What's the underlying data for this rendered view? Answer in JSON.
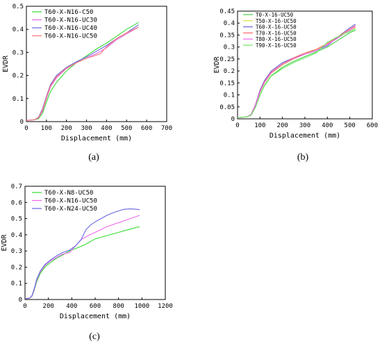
{
  "chart_data": [
    {
      "type": "line",
      "caption": "(a)",
      "xlabel": "Displacement (mm)",
      "ylabel": "EVDR",
      "xlim": [
        0,
        700
      ],
      "ylim": [
        0,
        0.5
      ],
      "xticks": [
        0,
        100,
        200,
        300,
        400,
        500,
        600,
        700
      ],
      "yticks": [
        0,
        0.1,
        0.2,
        0.3,
        0.4,
        0.5
      ],
      "legend": "top-left",
      "series": [
        {
          "name": "T60-X-N16-C50",
          "color": "#33dd33",
          "x": [
            0,
            40,
            60,
            80,
            100,
            120,
            150,
            200,
            250,
            300,
            350,
            400,
            450,
            500,
            560
          ],
          "y": [
            0.005,
            0.008,
            0.012,
            0.035,
            0.085,
            0.13,
            0.17,
            0.22,
            0.255,
            0.285,
            0.315,
            0.34,
            0.37,
            0.4,
            0.43
          ]
        },
        {
          "name": "T60-X-N16-UC30",
          "color": "#e066e0",
          "x": [
            0,
            40,
            60,
            80,
            100,
            120,
            150,
            200,
            250,
            300,
            350,
            400,
            450,
            500,
            560
          ],
          "y": [
            0.005,
            0.008,
            0.015,
            0.045,
            0.1,
            0.15,
            0.19,
            0.23,
            0.255,
            0.275,
            0.295,
            0.32,
            0.355,
            0.38,
            0.41
          ]
        },
        {
          "name": "T60-X-N16-UC40",
          "color": "#6666dd",
          "x": [
            0,
            40,
            60,
            80,
            100,
            120,
            150,
            200,
            250,
            300,
            350,
            400,
            450,
            500,
            560
          ],
          "y": [
            0.005,
            0.008,
            0.018,
            0.055,
            0.11,
            0.16,
            0.2,
            0.235,
            0.26,
            0.28,
            0.305,
            0.33,
            0.36,
            0.385,
            0.42
          ]
        },
        {
          "name": "T60-X-N16-UC50",
          "color": "#ff7777",
          "x": [
            0,
            40,
            60,
            80,
            100,
            120,
            150,
            200,
            250,
            300,
            340,
            370,
            400,
            450,
            500,
            560
          ],
          "y": [
            0.005,
            0.008,
            0.016,
            0.05,
            0.105,
            0.155,
            0.195,
            0.232,
            0.255,
            0.275,
            0.285,
            0.295,
            0.325,
            0.36,
            0.385,
            0.41
          ]
        }
      ]
    },
    {
      "type": "line",
      "caption": "(b)",
      "xlabel": "Displacement (mm)",
      "ylabel": "EVDR",
      "xlim": [
        0,
        600
      ],
      "ylim": [
        0,
        0.45
      ],
      "xticks": [
        0,
        100,
        200,
        300,
        400,
        500,
        600
      ],
      "yticks": [
        0,
        0.05,
        0.1,
        0.15,
        0.2,
        0.25,
        0.3,
        0.35,
        0.4,
        0.45
      ],
      "legend": "top-left",
      "series": [
        {
          "name": "T0-X-16-UC50",
          "color": "#44cc44",
          "x": [
            0,
            40,
            60,
            80,
            100,
            120,
            150,
            200,
            250,
            300,
            350,
            400,
            450,
            500,
            525
          ],
          "y": [
            0.005,
            0.008,
            0.015,
            0.05,
            0.1,
            0.14,
            0.18,
            0.215,
            0.24,
            0.26,
            0.28,
            0.3,
            0.33,
            0.36,
            0.37
          ]
        },
        {
          "name": "T50-X-16-UC50",
          "color": "#dddd44",
          "x": [
            0,
            40,
            60,
            80,
            100,
            120,
            150,
            200,
            250,
            300,
            350,
            400,
            450,
            500,
            525
          ],
          "y": [
            0.005,
            0.008,
            0.016,
            0.055,
            0.11,
            0.15,
            0.19,
            0.225,
            0.25,
            0.27,
            0.29,
            0.31,
            0.34,
            0.37,
            0.38
          ]
        },
        {
          "name": "T60-X-16-UC50",
          "color": "#6666dd",
          "x": [
            0,
            40,
            60,
            80,
            100,
            120,
            150,
            200,
            250,
            300,
            350,
            400,
            450,
            500,
            525
          ],
          "y": [
            0.005,
            0.008,
            0.018,
            0.06,
            0.12,
            0.16,
            0.2,
            0.235,
            0.255,
            0.27,
            0.285,
            0.305,
            0.345,
            0.38,
            0.395
          ]
        },
        {
          "name": "T70-X-16-UC50",
          "color": "#ff6666",
          "x": [
            0,
            40,
            60,
            80,
            100,
            120,
            150,
            200,
            250,
            300,
            350,
            400,
            450,
            500,
            525
          ],
          "y": [
            0.005,
            0.008,
            0.017,
            0.058,
            0.115,
            0.155,
            0.195,
            0.23,
            0.255,
            0.275,
            0.29,
            0.315,
            0.345,
            0.375,
            0.39
          ]
        },
        {
          "name": "T80-X-16-UC50",
          "color": "#ee66ee",
          "x": [
            0,
            40,
            60,
            80,
            100,
            120,
            150,
            200,
            250,
            300,
            350,
            400,
            450,
            500,
            525
          ],
          "y": [
            0.005,
            0.008,
            0.016,
            0.056,
            0.112,
            0.152,
            0.192,
            0.228,
            0.252,
            0.27,
            0.285,
            0.31,
            0.34,
            0.37,
            0.385
          ]
        },
        {
          "name": "T90-X-16-UC50",
          "color": "#66ee66",
          "x": [
            0,
            40,
            60,
            80,
            100,
            120,
            150,
            200,
            250,
            300,
            350,
            400,
            450,
            500,
            525
          ],
          "y": [
            0.005,
            0.008,
            0.014,
            0.048,
            0.098,
            0.138,
            0.178,
            0.21,
            0.235,
            0.255,
            0.275,
            0.32,
            0.345,
            0.365,
            0.375
          ]
        }
      ]
    },
    {
      "type": "line",
      "caption": "(c)",
      "xlabel": "Displacement (mm)",
      "ylabel": "EVDR",
      "xlim": [
        0,
        1200
      ],
      "ylim": [
        0,
        0.7
      ],
      "xticks": [
        0,
        200,
        400,
        600,
        800,
        1000,
        1200
      ],
      "yticks": [
        0,
        0.1,
        0.2,
        0.3,
        0.4,
        0.5,
        0.6,
        0.7
      ],
      "legend": "top-left",
      "series": [
        {
          "name": "T60-X-N8-UC50",
          "color": "#33dd33",
          "x": [
            0,
            40,
            60,
            80,
            100,
            130,
            170,
            220,
            270,
            320,
            380,
            450,
            500,
            540,
            600,
            700,
            800,
            900,
            980
          ],
          "y": [
            0.005,
            0.008,
            0.02,
            0.06,
            0.11,
            0.16,
            0.2,
            0.23,
            0.255,
            0.275,
            0.3,
            0.32,
            0.335,
            0.35,
            0.375,
            0.395,
            0.415,
            0.435,
            0.45
          ]
        },
        {
          "name": "T60-X-N16-UC50",
          "color": "#ee66ee",
          "x": [
            0,
            40,
            60,
            80,
            100,
            130,
            170,
            220,
            270,
            320,
            380,
            430,
            480,
            540,
            600,
            700,
            800,
            900,
            980
          ],
          "y": [
            0.005,
            0.008,
            0.022,
            0.065,
            0.12,
            0.17,
            0.21,
            0.24,
            0.26,
            0.28,
            0.29,
            0.33,
            0.37,
            0.395,
            0.415,
            0.45,
            0.475,
            0.5,
            0.52
          ]
        },
        {
          "name": "T60-X-N24-UC50",
          "color": "#6666dd",
          "x": [
            0,
            40,
            60,
            80,
            100,
            130,
            170,
            220,
            270,
            320,
            380,
            430,
            480,
            520,
            560,
            600,
            650,
            700,
            750,
            800,
            850,
            900,
            950,
            980
          ],
          "y": [
            0.005,
            0.008,
            0.025,
            0.07,
            0.125,
            0.175,
            0.215,
            0.245,
            0.27,
            0.29,
            0.305,
            0.33,
            0.37,
            0.43,
            0.46,
            0.48,
            0.5,
            0.52,
            0.535,
            0.548,
            0.558,
            0.56,
            0.558,
            0.555
          ]
        }
      ]
    }
  ]
}
